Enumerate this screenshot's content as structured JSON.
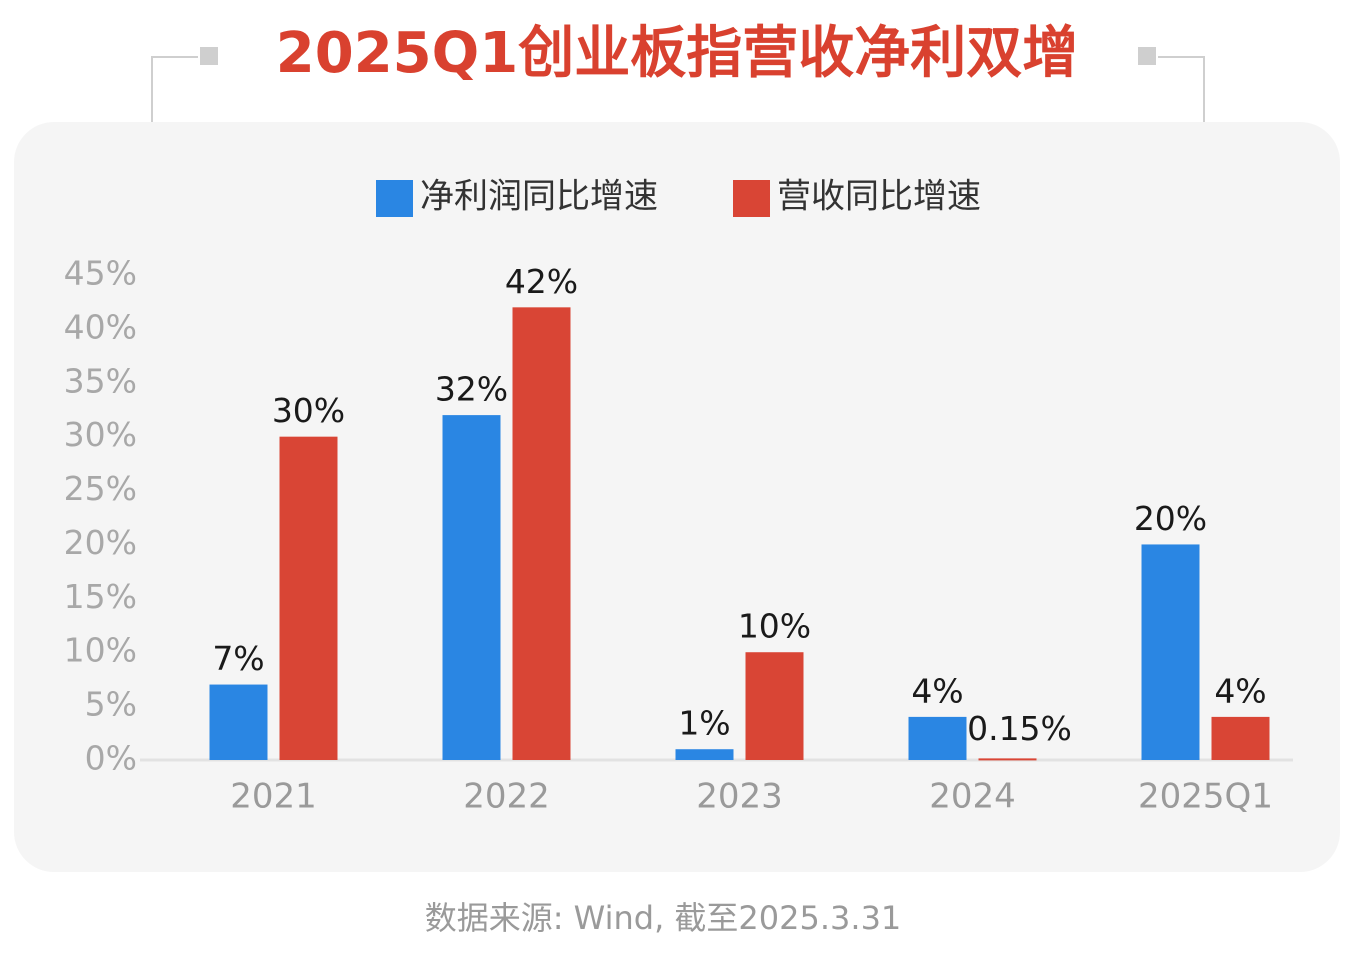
{
  "chart_data": {
    "type": "bar",
    "title": "2025Q1创业板指营收净利双增",
    "source": "数据来源: Wind, 截至2025.3.31",
    "categories": [
      "2021",
      "2022",
      "2023",
      "2024",
      "2025Q1"
    ],
    "series": [
      {
        "name": "净利润同比增速",
        "color": "#2a86e3",
        "values": [
          7,
          32,
          1,
          4,
          20
        ],
        "value_labels": [
          "7%",
          "32%",
          "1%",
          "4%",
          "20%"
        ]
      },
      {
        "name": "营收同比增速",
        "color": "#d94535",
        "values": [
          30,
          42,
          10,
          0.15,
          4
        ],
        "value_labels": [
          "30%",
          "42%",
          "10%",
          "0.15%",
          "4%"
        ]
      }
    ],
    "ylim": [
      0,
      45
    ],
    "yticks": [
      {
        "value": 0,
        "label": "0%"
      },
      {
        "value": 5,
        "label": "5%"
      },
      {
        "value": 10,
        "label": "10%"
      },
      {
        "value": 15,
        "label": "15%"
      },
      {
        "value": 20,
        "label": "20%"
      },
      {
        "value": 25,
        "label": "25%"
      },
      {
        "value": 30,
        "label": "30%"
      },
      {
        "value": 35,
        "label": "35%"
      },
      {
        "value": 40,
        "label": "40%"
      },
      {
        "value": 45,
        "label": "45%"
      }
    ],
    "legend": "top"
  }
}
